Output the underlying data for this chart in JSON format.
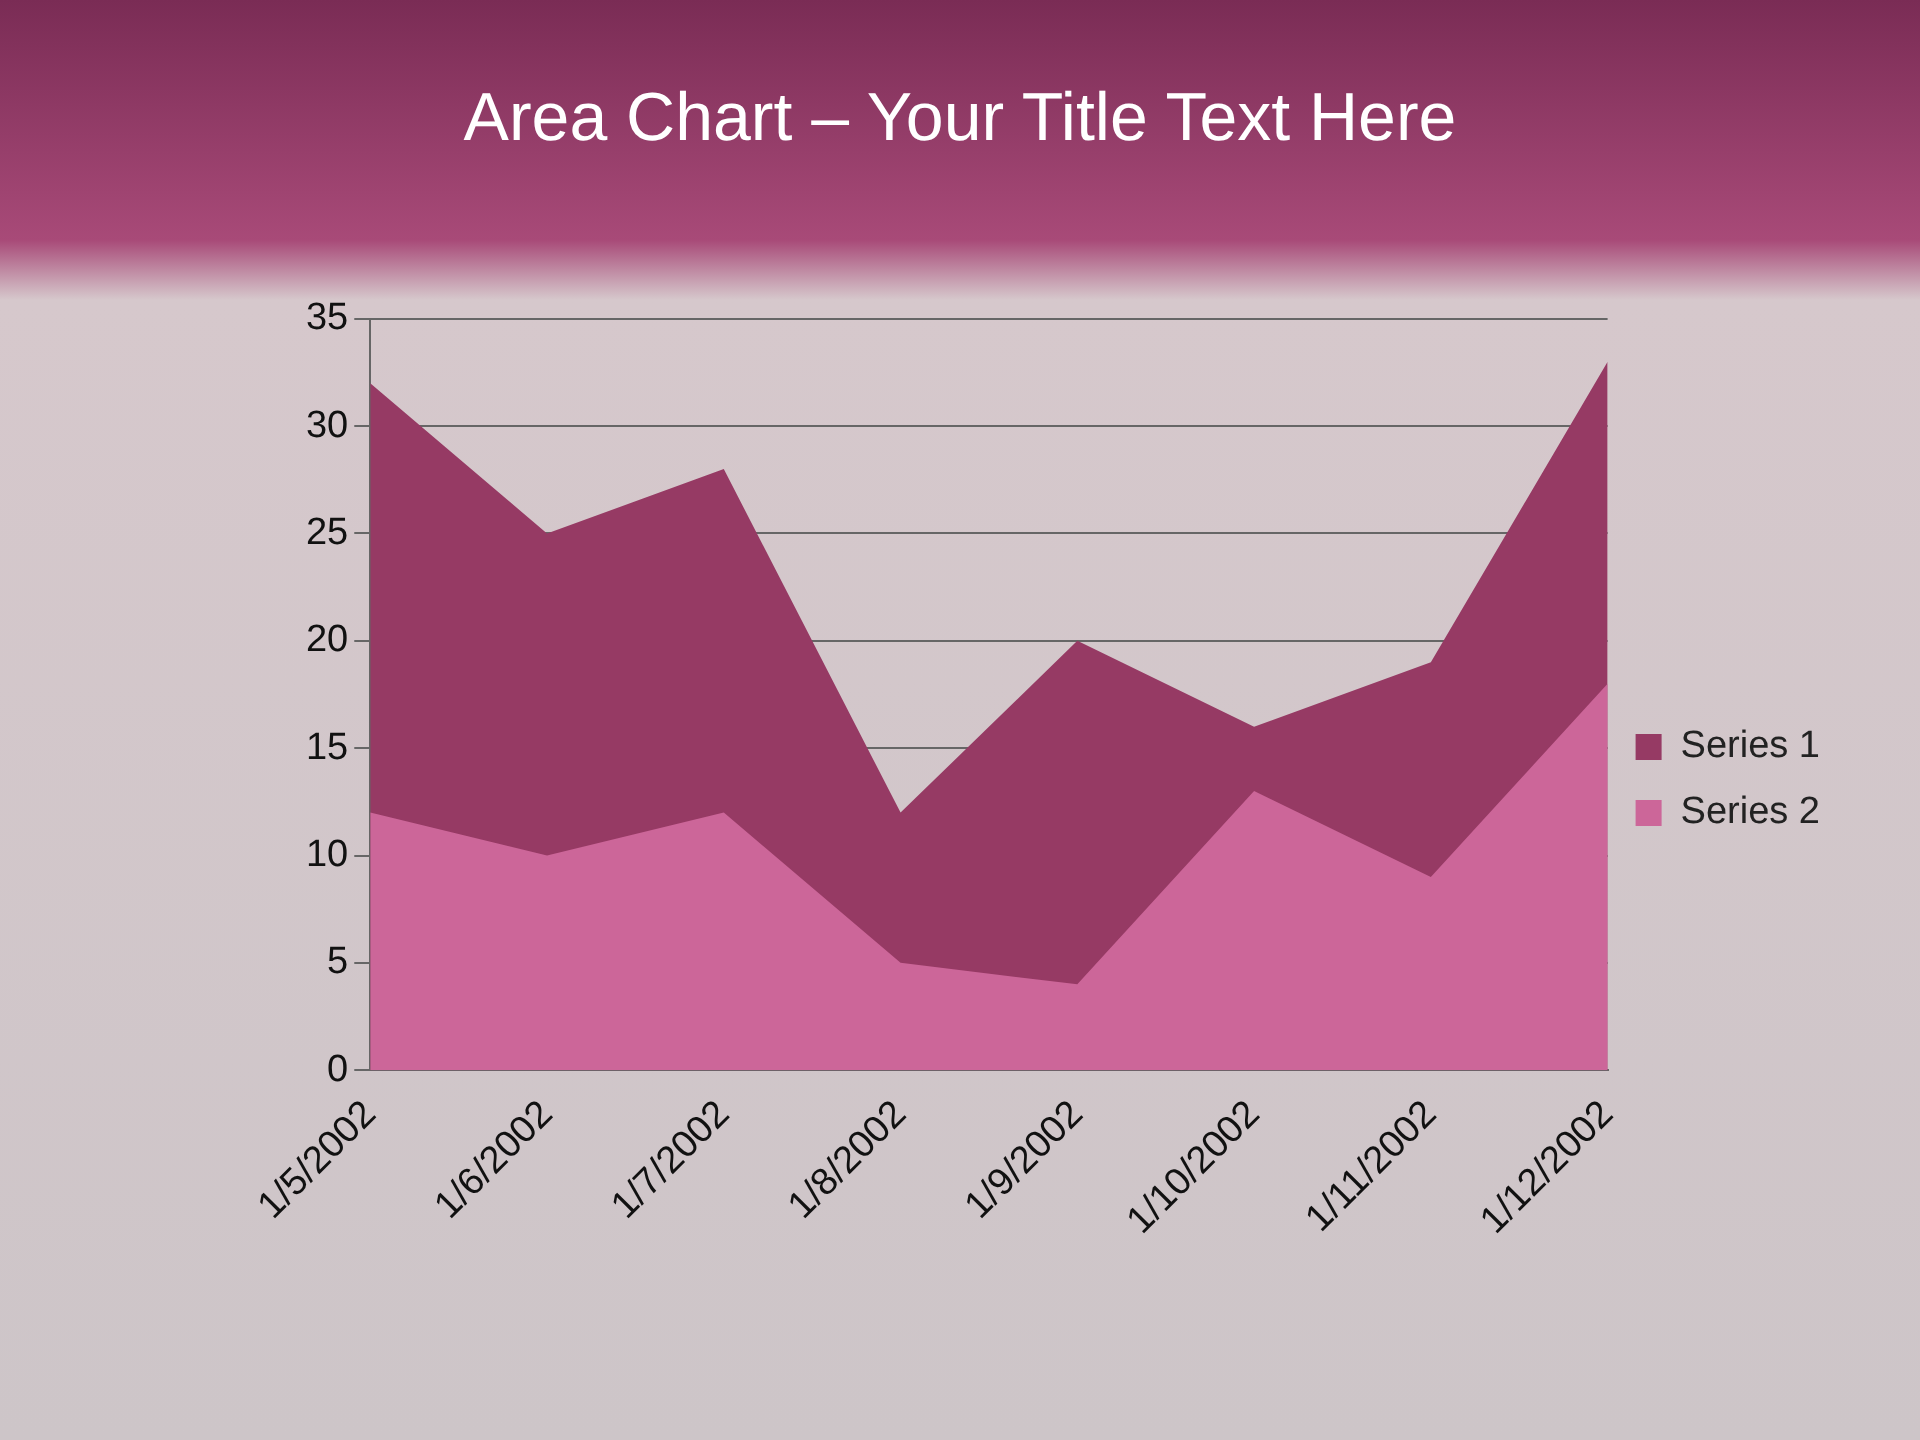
{
  "chart_data": {
    "type": "area",
    "title": "Area Chart – Your Title Text Here",
    "categories": [
      "1/5/2002",
      "1/6/2002",
      "1/7/2002",
      "1/8/2002",
      "1/9/2002",
      "1/10/2002",
      "1/11/2002",
      "1/12/2002"
    ],
    "series": [
      {
        "name": "Series 1",
        "color": "#963a64",
        "values": [
          32,
          25,
          28,
          12,
          20,
          16,
          19,
          33
        ]
      },
      {
        "name": "Series 2",
        "color": "#cc6699",
        "values": [
          12,
          10,
          12,
          5,
          4,
          13,
          9,
          18
        ]
      }
    ],
    "ylim": [
      0,
      35
    ],
    "yticks": [
      0,
      5,
      10,
      15,
      20,
      25,
      30,
      35
    ],
    "grid": "y",
    "legend": "right"
  }
}
